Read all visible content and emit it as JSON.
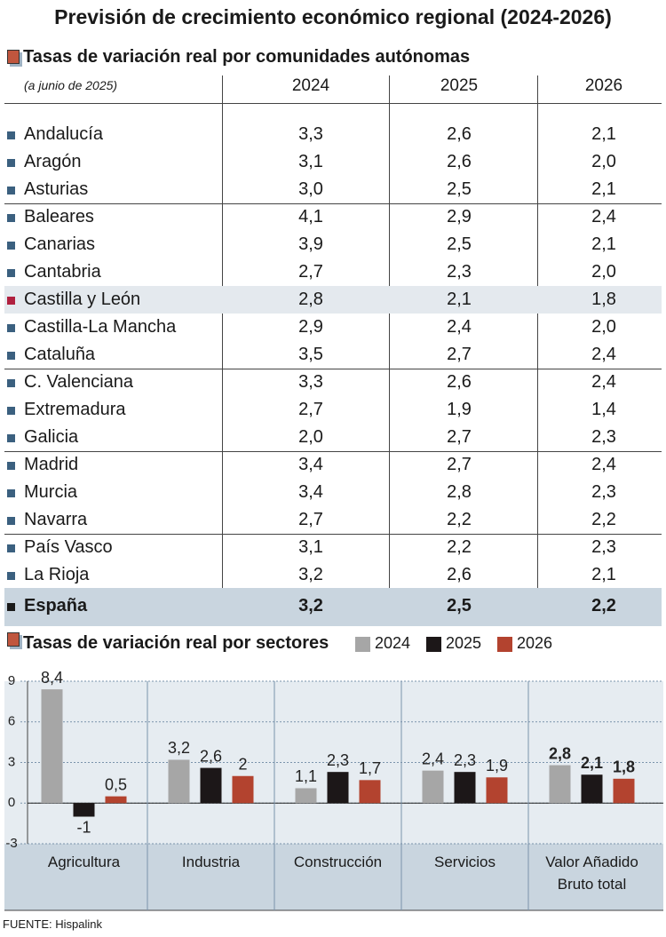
{
  "title": "Previsión de crecimiento económico regional (2024-2026)",
  "table": {
    "heading": "Tasas de variación real por comunidades autónomas",
    "note": "(a junio de 2025)",
    "columns": [
      "2024",
      "2025",
      "2026"
    ],
    "rows": [
      [
        "Andalucía",
        "3,3",
        "2,6",
        "2,1"
      ],
      [
        "Aragón",
        "3,1",
        "2,6",
        "2,0"
      ],
      [
        "Asturias",
        "3,0",
        "2,5",
        "2,1"
      ],
      [
        "Baleares",
        "4,1",
        "2,9",
        "2,4"
      ],
      [
        "Canarias",
        "3,9",
        "2,5",
        "2,1"
      ],
      [
        "Cantabria",
        "2,7",
        "2,3",
        "2,0"
      ],
      [
        "Castilla y León",
        "2,8",
        "2,1",
        "1,8"
      ],
      [
        "Castilla-La Mancha",
        "2,9",
        "2,4",
        "2,0"
      ],
      [
        "Cataluña",
        "3,5",
        "2,7",
        "2,4"
      ],
      [
        "C. Valenciana",
        "3,3",
        "2,6",
        "2,4"
      ],
      [
        "Extremadura",
        "2,7",
        "1,9",
        "1,4"
      ],
      [
        "Galicia",
        "2,0",
        "2,7",
        "2,3"
      ],
      [
        "Madrid",
        "3,4",
        "2,7",
        "2,4"
      ],
      [
        "Murcia",
        "3,4",
        "2,8",
        "2,3"
      ],
      [
        "Navarra",
        "2,7",
        "2,2",
        "2,2"
      ],
      [
        "País Vasco",
        "3,1",
        "2,2",
        "2,3"
      ],
      [
        "La Rioja",
        "3,2",
        "2,6",
        "2,1"
      ]
    ],
    "total": [
      "España",
      "3,2",
      "2,5",
      "2,2"
    ]
  },
  "chart_data": {
    "type": "bar",
    "title": "Tasas de variación real por sectores",
    "categories": [
      "Agricultura",
      "Industria",
      "Construcción",
      "Servicios",
      "Valor Añadido Bruto total"
    ],
    "series": [
      {
        "name": "2024",
        "color": "#a6a6a6",
        "values": [
          8.4,
          3.2,
          1.1,
          2.4,
          2.8
        ],
        "value_labels": [
          "8,4",
          "3,2",
          "1,1",
          "2,4",
          "2,8"
        ]
      },
      {
        "name": "2025",
        "color": "#1c1718",
        "values": [
          -1,
          2.6,
          2.3,
          2.3,
          2.1
        ],
        "value_labels": [
          "-1",
          "2,6",
          "2,3",
          "2,3",
          "2,1"
        ]
      },
      {
        "name": "2026",
        "color": "#b3432f",
        "values": [
          0.5,
          2,
          1.7,
          1.9,
          1.8
        ],
        "value_labels": [
          "0,5",
          "2",
          "1,7",
          "1,9",
          "1,8"
        ]
      }
    ],
    "ylim": [
      -3,
      9
    ],
    "yticks": [
      9,
      6,
      3,
      0,
      -3
    ],
    "grid": true
  },
  "source": "FUENTE: Hispalink"
}
